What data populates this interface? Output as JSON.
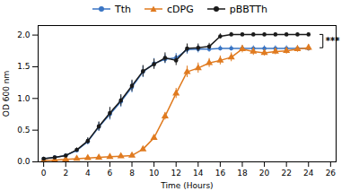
{
  "chart_data": {
    "type": "line",
    "xlabel": "Time (Hours)",
    "ylabel": "OD 600 nm",
    "xlim": [
      -0.5,
      26.5
    ],
    "ylim": [
      0,
      2.15
    ],
    "xticks": [
      0,
      2,
      4,
      6,
      8,
      10,
      12,
      14,
      16,
      18,
      20,
      22,
      24,
      26
    ],
    "yticks": [
      {
        "value": 0,
        "label": "0.0"
      },
      0.5,
      {
        "value": 1.0,
        "label": "1.0"
      },
      1.5,
      {
        "value": 2.0,
        "label": "2.0"
      }
    ],
    "grid": false,
    "legend": "top",
    "x": [
      0,
      1,
      2,
      3,
      4,
      5,
      6,
      7,
      8,
      9,
      10,
      11,
      12,
      13,
      14,
      15,
      16,
      17,
      18,
      19,
      20,
      21,
      22,
      23,
      24
    ],
    "series": [
      {
        "name": "Tth",
        "color": "#3a75c4",
        "marker": "circle",
        "values": [
          0.05,
          0.07,
          0.1,
          0.18,
          0.32,
          0.55,
          0.75,
          0.95,
          1.18,
          1.42,
          1.55,
          1.62,
          1.64,
          1.77,
          1.78,
          1.78,
          1.79,
          1.79,
          1.79,
          1.79,
          1.79,
          1.79,
          1.79,
          1.79,
          1.79
        ],
        "errors": [
          0.02,
          0.02,
          0.02,
          0.03,
          0.05,
          0.07,
          0.09,
          0.09,
          0.09,
          0.09,
          0.08,
          0.07,
          0.07,
          0.07,
          0.06,
          0.05,
          0.04,
          0.04,
          0.04,
          0.04,
          0.04,
          0.04,
          0.04,
          0.04,
          0.04
        ]
      },
      {
        "name": "cDPG",
        "color": "#e07b20",
        "marker": "triangle",
        "values": [
          0.02,
          0.03,
          0.04,
          0.05,
          0.06,
          0.07,
          0.08,
          0.09,
          0.1,
          0.2,
          0.38,
          0.72,
          1.08,
          1.42,
          1.48,
          1.56,
          1.6,
          1.65,
          1.78,
          1.74,
          1.72,
          1.74,
          1.75,
          1.78,
          1.8
        ],
        "errors": [
          0.01,
          0.01,
          0.01,
          0.01,
          0.01,
          0.02,
          0.02,
          0.02,
          0.02,
          0.03,
          0.04,
          0.06,
          0.08,
          0.09,
          0.08,
          0.07,
          0.07,
          0.07,
          0.06,
          0.06,
          0.05,
          0.05,
          0.05,
          0.05,
          0.05
        ]
      },
      {
        "name": "pBBTTh",
        "color": "#1a1a1a",
        "marker": "circle",
        "values": [
          0.05,
          0.07,
          0.1,
          0.19,
          0.33,
          0.56,
          0.77,
          0.97,
          1.2,
          1.43,
          1.54,
          1.64,
          1.6,
          1.79,
          1.8,
          1.82,
          1.98,
          2.01,
          2.01,
          2.01,
          2.01,
          2.01,
          2.01,
          2.01,
          2.01
        ],
        "errors": [
          0.02,
          0.02,
          0.02,
          0.03,
          0.05,
          0.07,
          0.09,
          0.09,
          0.09,
          0.09,
          0.08,
          0.08,
          0.08,
          0.07,
          0.06,
          0.05,
          0.04,
          0.03,
          0.02,
          0.02,
          0.02,
          0.02,
          0.02,
          0.02,
          0.02
        ]
      }
    ],
    "annotations": [
      {
        "text": "***",
        "between": [
          "cDPG",
          "pBBTTh"
        ]
      }
    ]
  }
}
